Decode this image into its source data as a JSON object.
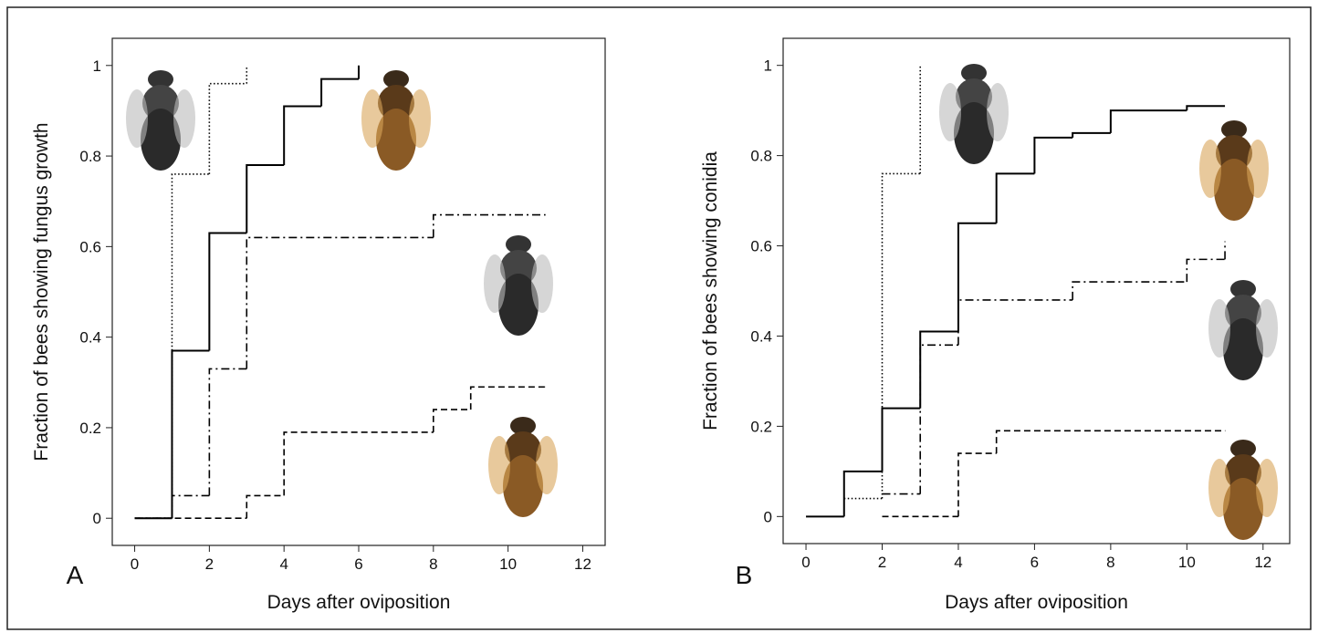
{
  "chart_data": [
    {
      "type": "step",
      "panel_label": "A",
      "ylabel": "Fraction of bees showing fungus growth",
      "xlabel": "Days after oviposition",
      "xlim": [
        -0.6,
        12.6
      ],
      "ylim": [
        -0.06,
        1.06
      ],
      "xticks": [
        0,
        2,
        4,
        6,
        8,
        10,
        12
      ],
      "yticks": [
        0,
        0.2,
        0.4,
        0.6,
        0.8,
        1
      ],
      "series": [
        {
          "dash": "solid",
          "color": "#000",
          "x": [
            0,
            1,
            2,
            3,
            4,
            5,
            6
          ],
          "values": [
            0,
            0.37,
            0.63,
            0.78,
            0.91,
            0.97,
            1.0
          ]
        },
        {
          "dash": "dotted",
          "color": "#000",
          "x": [
            0,
            1,
            2,
            3
          ],
          "values": [
            0,
            0.76,
            0.96,
            1.0
          ]
        },
        {
          "dash": "dashdot",
          "color": "#000",
          "x": [
            0,
            1,
            2,
            3,
            8,
            11
          ],
          "values": [
            0,
            0.05,
            0.33,
            0.62,
            0.67,
            0.67
          ]
        },
        {
          "dash": "dashed",
          "color": "#000",
          "x": [
            0,
            3,
            4,
            8,
            9,
            11
          ],
          "values": [
            0,
            0.05,
            0.19,
            0.24,
            0.29,
            0.29
          ]
        }
      ]
    },
    {
      "type": "step",
      "panel_label": "B",
      "ylabel": "Fraction of bees showing conidia",
      "xlabel": "Days after oviposition",
      "xlim": [
        -0.6,
        12.7
      ],
      "ylim": [
        -0.06,
        1.06
      ],
      "xticks": [
        0,
        2,
        4,
        6,
        8,
        10,
        12
      ],
      "yticks": [
        0,
        0.2,
        0.4,
        0.6,
        0.8,
        1
      ],
      "series": [
        {
          "dash": "solid",
          "color": "#000",
          "x": [
            0,
            1,
            2,
            3,
            4,
            5,
            6,
            7,
            8,
            10,
            11
          ],
          "values": [
            0,
            0.1,
            0.24,
            0.41,
            0.65,
            0.76,
            0.84,
            0.85,
            0.9,
            0.91,
            0.91
          ]
        },
        {
          "dash": "dotted",
          "color": "#000",
          "x": [
            1,
            2,
            3
          ],
          "values": [
            0.04,
            0.76,
            1.0
          ]
        },
        {
          "dash": "dashdot",
          "color": "#000",
          "x": [
            2,
            3,
            4,
            7,
            10,
            11
          ],
          "values": [
            0.05,
            0.38,
            0.48,
            0.52,
            0.57,
            0.61
          ]
        },
        {
          "dash": "dashed",
          "color": "#000",
          "x": [
            2,
            4,
            5,
            11
          ],
          "values": [
            0,
            0.14,
            0.19,
            0.19
          ]
        }
      ]
    }
  ]
}
